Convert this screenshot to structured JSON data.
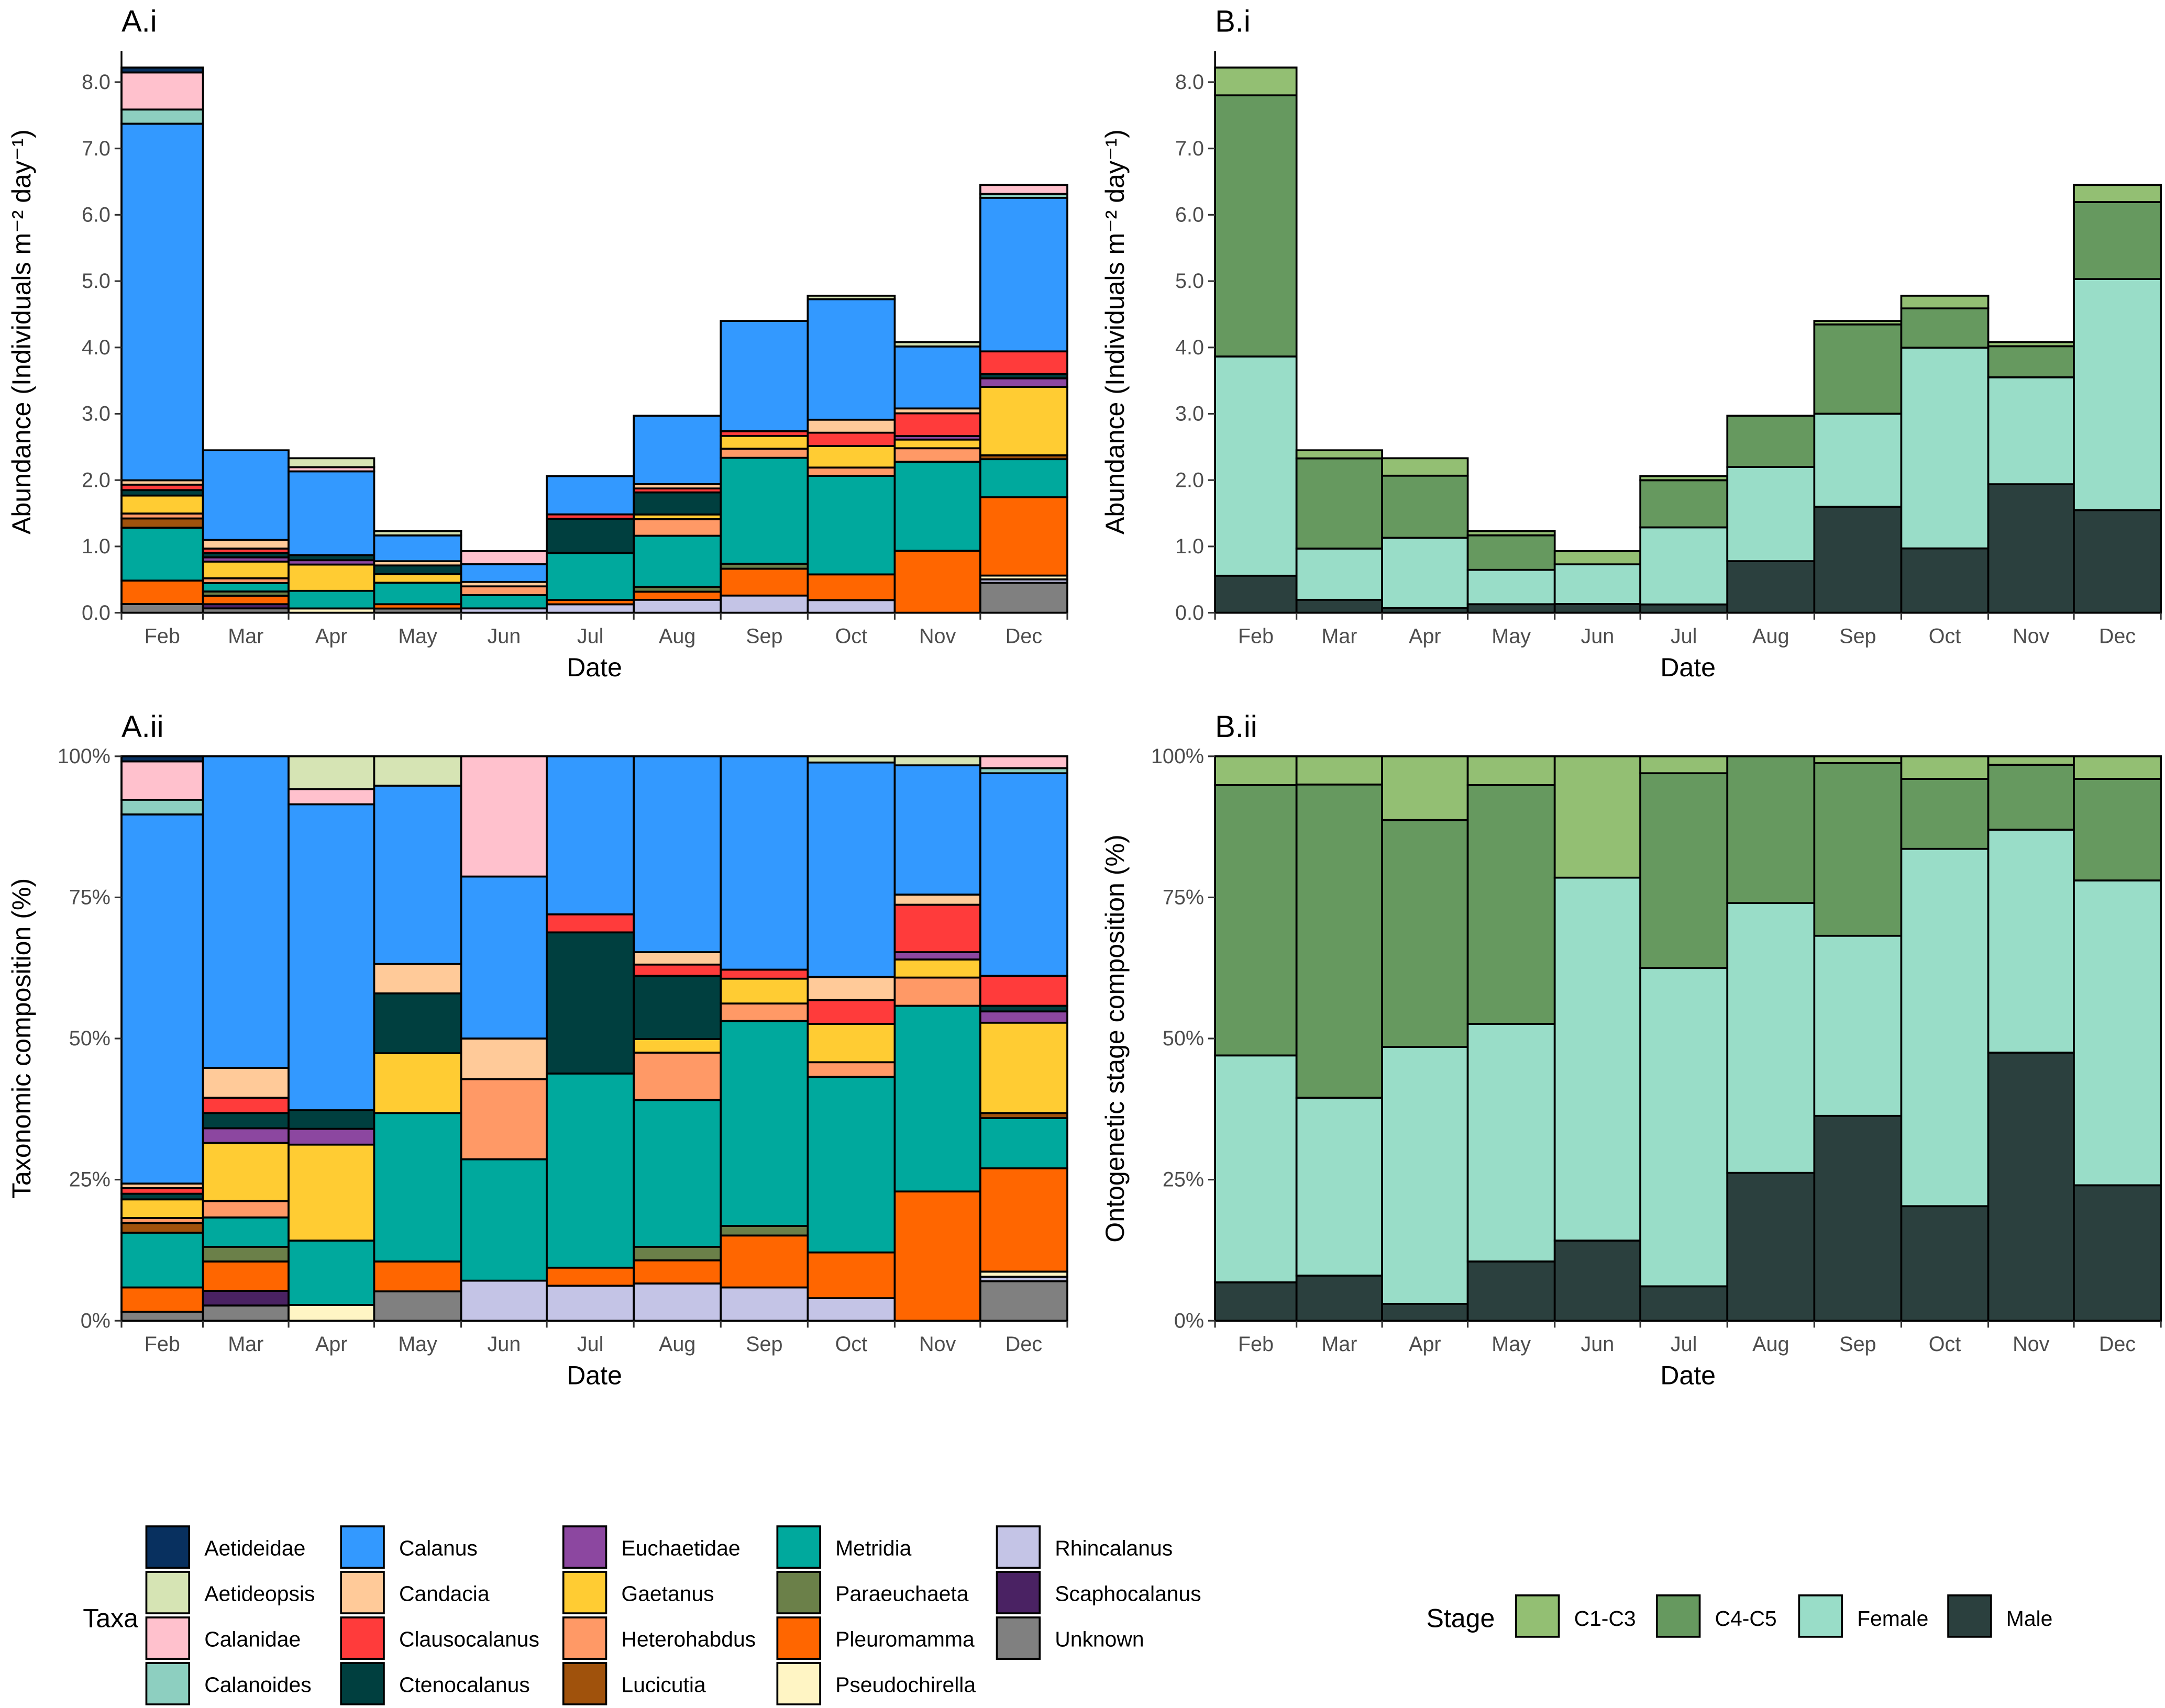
{
  "months": [
    "Feb",
    "Mar",
    "Apr",
    "May",
    "Jun",
    "Jul",
    "Aug",
    "Sep",
    "Oct",
    "Nov",
    "Dec"
  ],
  "totals": [
    8.22,
    2.45,
    2.33,
    1.23,
    0.93,
    2.06,
    2.97,
    4.4,
    4.78,
    4.08,
    6.45
  ],
  "colors": {
    "Aetideidae": "#08305f",
    "Aetideopsis": "#d6e4b4",
    "Calanidae": "#ffc1cd",
    "Calanoides": "#8dcfc0",
    "Calanus": "#3399ff",
    "Candacia": "#ffca99",
    "Clausocalanus": "#ff3b3b",
    "Ctenocalanus": "#003f3f",
    "Euchaetidae": "#8c47a0",
    "Gaetanus": "#ffcc33",
    "Heterohabdus": "#ff9966",
    "Lucicutia": "#a0520c",
    "Metridia": "#00a99d",
    "Paraeuchaeta": "#6b8049",
    "Pleuromamma": "#ff6600",
    "Pseudochirella": "#fff5c4",
    "Rhincalanus": "#c4c4e6",
    "Scaphocalanus": "#4a2263",
    "Unknown": "#808080",
    "C1-C3": "#93bf73",
    "C4-C5": "#66995f",
    "Female": "#99ddc8",
    "Male": "#2b403e"
  },
  "chart_data": [
    {
      "id": "A.i",
      "type": "bar",
      "stacked": true,
      "title": "A.i",
      "xlabel": "Date",
      "ylabel": "Abundance (Individuals m⁻² day⁻¹)",
      "ylim": [
        0,
        8.5
      ],
      "yticks": [
        "0.0",
        "1.0",
        "2.0",
        "3.0",
        "4.0",
        "5.0",
        "6.0",
        "7.0",
        "8.0"
      ],
      "note": "segment values = taxa composition (A.ii) x monthly total"
    },
    {
      "id": "A.ii",
      "type": "bar",
      "stacked": true,
      "title": "A.ii",
      "xlabel": "Date",
      "ylabel": "Taxonomic composition (%)",
      "ylim": [
        0,
        100
      ],
      "yticks": [
        "0%",
        "25%",
        "50%",
        "75%",
        "100%"
      ],
      "composition": [
        [
          [
            "Unknown",
            1.6
          ],
          [
            "Pleuromamma",
            4.3
          ],
          [
            "Metridia",
            9.7
          ],
          [
            "Lucicutia",
            1.7
          ],
          [
            "Heterohabdus",
            0.9
          ],
          [
            "Gaetanus",
            3.3
          ],
          [
            "Ctenocalanus",
            1.0
          ],
          [
            "Clausocalanus",
            1.0
          ],
          [
            "Candacia",
            0.8
          ],
          [
            "Calanus",
            65.4
          ],
          [
            "Calanoides",
            2.6
          ],
          [
            "Calanidae",
            6.8
          ],
          [
            "Aetideidae",
            0.9
          ]
        ],
        [
          [
            "Unknown",
            2.7
          ],
          [
            "Scaphocalanus",
            2.6
          ],
          [
            "Pleuromamma",
            5.2
          ],
          [
            "Paraeuchaeta",
            2.6
          ],
          [
            "Metridia",
            5.2
          ],
          [
            "Heterohabdus",
            2.9
          ],
          [
            "Gaetanus",
            10.3
          ],
          [
            "Euchaetidae",
            2.6
          ],
          [
            "Ctenocalanus",
            2.7
          ],
          [
            "Clausocalanus",
            2.7
          ],
          [
            "Candacia",
            5.3
          ],
          [
            "Calanus",
            55.2
          ]
        ],
        [
          [
            "Pseudochirella",
            2.8
          ],
          [
            "Metridia",
            11.4
          ],
          [
            "Gaetanus",
            17.0
          ],
          [
            "Euchaetidae",
            2.8
          ],
          [
            "Ctenocalanus",
            3.3
          ],
          [
            "Calanus",
            54.2
          ],
          [
            "Calanidae",
            2.7
          ],
          [
            "Aetideopsis",
            5.8
          ]
        ],
        [
          [
            "Unknown",
            5.2
          ],
          [
            "Pleuromamma",
            5.3
          ],
          [
            "Metridia",
            26.3
          ],
          [
            "Gaetanus",
            10.6
          ],
          [
            "Ctenocalanus",
            10.6
          ],
          [
            "Candacia",
            5.2
          ],
          [
            "Calanus",
            31.6
          ],
          [
            "Aetideopsis",
            5.2
          ]
        ],
        [
          [
            "Rhincalanus",
            7.1
          ],
          [
            "Metridia",
            21.5
          ],
          [
            "Heterohabdus",
            14.2
          ],
          [
            "Candacia",
            7.2
          ],
          [
            "Calanus",
            28.7
          ],
          [
            "Calanidae",
            21.3
          ]
        ],
        [
          [
            "Rhincalanus",
            6.2
          ],
          [
            "Pleuromamma",
            3.2
          ],
          [
            "Metridia",
            34.4
          ],
          [
            "Ctenocalanus",
            25.0
          ],
          [
            "Clausocalanus",
            3.2
          ],
          [
            "Calanus",
            28.0
          ]
        ],
        [
          [
            "Rhincalanus",
            6.6
          ],
          [
            "Pleuromamma",
            4.1
          ],
          [
            "Paraeuchaeta",
            2.4
          ],
          [
            "Metridia",
            26.0
          ],
          [
            "Heterohabdus",
            8.4
          ],
          [
            "Gaetanus",
            2.4
          ],
          [
            "Ctenocalanus",
            11.2
          ],
          [
            "Clausocalanus",
            2.0
          ],
          [
            "Candacia",
            2.2
          ],
          [
            "Calanus",
            34.7
          ]
        ],
        [
          [
            "Rhincalanus",
            5.9
          ],
          [
            "Pleuromamma",
            9.2
          ],
          [
            "Paraeuchaeta",
            1.7
          ],
          [
            "Metridia",
            36.3
          ],
          [
            "Heterohabdus",
            3.1
          ],
          [
            "Gaetanus",
            4.4
          ],
          [
            "Clausocalanus",
            1.6
          ],
          [
            "Calanus",
            37.8
          ]
        ],
        [
          [
            "Rhincalanus",
            4.0
          ],
          [
            "Pleuromamma",
            8.1
          ],
          [
            "Metridia",
            31.1
          ],
          [
            "Heterohabdus",
            2.6
          ],
          [
            "Gaetanus",
            6.8
          ],
          [
            "Clausocalanus",
            4.2
          ],
          [
            "Candacia",
            4.1
          ],
          [
            "Calanus",
            38.0
          ],
          [
            "Aetideopsis",
            1.1
          ]
        ],
        [
          [
            "Pleuromamma",
            22.9
          ],
          [
            "Metridia",
            32.9
          ],
          [
            "Heterohabdus",
            5.0
          ],
          [
            "Gaetanus",
            3.2
          ],
          [
            "Euchaetidae",
            1.3
          ],
          [
            "Clausocalanus",
            8.4
          ],
          [
            "Candacia",
            1.8
          ],
          [
            "Calanus",
            22.9
          ],
          [
            "Aetideopsis",
            1.6
          ]
        ],
        [
          [
            "Unknown",
            7.0
          ],
          [
            "Rhincalanus",
            0.8
          ],
          [
            "Pseudochirella",
            0.9
          ],
          [
            "Pleuromamma",
            18.3
          ],
          [
            "Metridia",
            8.9
          ],
          [
            "Lucicutia",
            0.9
          ],
          [
            "Gaetanus",
            16.0
          ],
          [
            "Euchaetidae",
            2.0
          ],
          [
            "Ctenocalanus",
            1.0
          ],
          [
            "Clausocalanus",
            5.3
          ],
          [
            "Calanus",
            35.9
          ],
          [
            "Calanoides",
            0.9
          ],
          [
            "Calanidae",
            2.1
          ]
        ]
      ]
    },
    {
      "id": "B.i",
      "type": "bar",
      "stacked": true,
      "title": "B.i",
      "xlabel": "Date",
      "ylabel": "Abundance (Individuals m⁻² day⁻¹)",
      "ylim": [
        0,
        8.5
      ],
      "yticks": [
        "0.0",
        "1.0",
        "2.0",
        "3.0",
        "4.0",
        "5.0",
        "6.0",
        "7.0",
        "8.0"
      ],
      "note": "segment values = stage composition (B.ii) x monthly total"
    },
    {
      "id": "B.ii",
      "type": "bar",
      "stacked": true,
      "title": "B.ii",
      "xlabel": "Date",
      "ylabel": "Ontogenetic stage composition (%)",
      "ylim": [
        0,
        100
      ],
      "yticks": [
        "0%",
        "25%",
        "50%",
        "75%",
        "100%"
      ],
      "composition": [
        [
          [
            "Male",
            6.8
          ],
          [
            "Female",
            40.2
          ],
          [
            "C4-C5",
            47.9
          ],
          [
            "C1-C3",
            5.1
          ]
        ],
        [
          [
            "Male",
            8.0
          ],
          [
            "Female",
            31.5
          ],
          [
            "C4-C5",
            55.5
          ],
          [
            "C1-C3",
            5.0
          ]
        ],
        [
          [
            "Male",
            3.0
          ],
          [
            "Female",
            45.5
          ],
          [
            "C4-C5",
            40.2
          ],
          [
            "C1-C3",
            11.3
          ]
        ],
        [
          [
            "Male",
            10.5
          ],
          [
            "Female",
            42.1
          ],
          [
            "C4-C5",
            42.3
          ],
          [
            "C1-C3",
            5.1
          ]
        ],
        [
          [
            "Male",
            14.2
          ],
          [
            "Female",
            64.3
          ],
          [
            "C4-C5",
            0
          ],
          [
            "C1-C3",
            21.5
          ]
        ],
        [
          [
            "Male",
            6.1
          ],
          [
            "Female",
            56.4
          ],
          [
            "C4-C5",
            34.5
          ],
          [
            "C1-C3",
            3.0
          ]
        ],
        [
          [
            "Male",
            26.2
          ],
          [
            "Female",
            47.8
          ],
          [
            "C4-C5",
            26.0
          ],
          [
            "C1-C3",
            0
          ]
        ],
        [
          [
            "Male",
            36.3
          ],
          [
            "Female",
            31.9
          ],
          [
            "C4-C5",
            30.6
          ],
          [
            "C1-C3",
            1.2
          ]
        ],
        [
          [
            "Male",
            20.3
          ],
          [
            "Female",
            63.3
          ],
          [
            "C4-C5",
            12.4
          ],
          [
            "C1-C3",
            4.0
          ]
        ],
        [
          [
            "Male",
            47.5
          ],
          [
            "Female",
            39.5
          ],
          [
            "C4-C5",
            11.5
          ],
          [
            "C1-C3",
            1.5
          ]
        ],
        [
          [
            "Male",
            24.0
          ],
          [
            "Female",
            54.0
          ],
          [
            "C4-C5",
            18.0
          ],
          [
            "C1-C3",
            4.0
          ]
        ]
      ]
    }
  ],
  "legend_taxa": {
    "title": "Taxa",
    "items": [
      "Aetideidae",
      "Aetideopsis",
      "Calanidae",
      "Calanoides",
      "Calanus",
      "Candacia",
      "Clausocalanus",
      "Ctenocalanus",
      "Euchaetidae",
      "Gaetanus",
      "Heterohabdus",
      "Lucicutia",
      "Metridia",
      "Paraeuchaeta",
      "Pleuromamma",
      "Pseudochirella",
      "Rhincalanus",
      "Scaphocalanus",
      "Unknown"
    ]
  },
  "legend_stage": {
    "title": "Stage",
    "items": [
      "C1-C3",
      "C4-C5",
      "Female",
      "Male"
    ]
  }
}
